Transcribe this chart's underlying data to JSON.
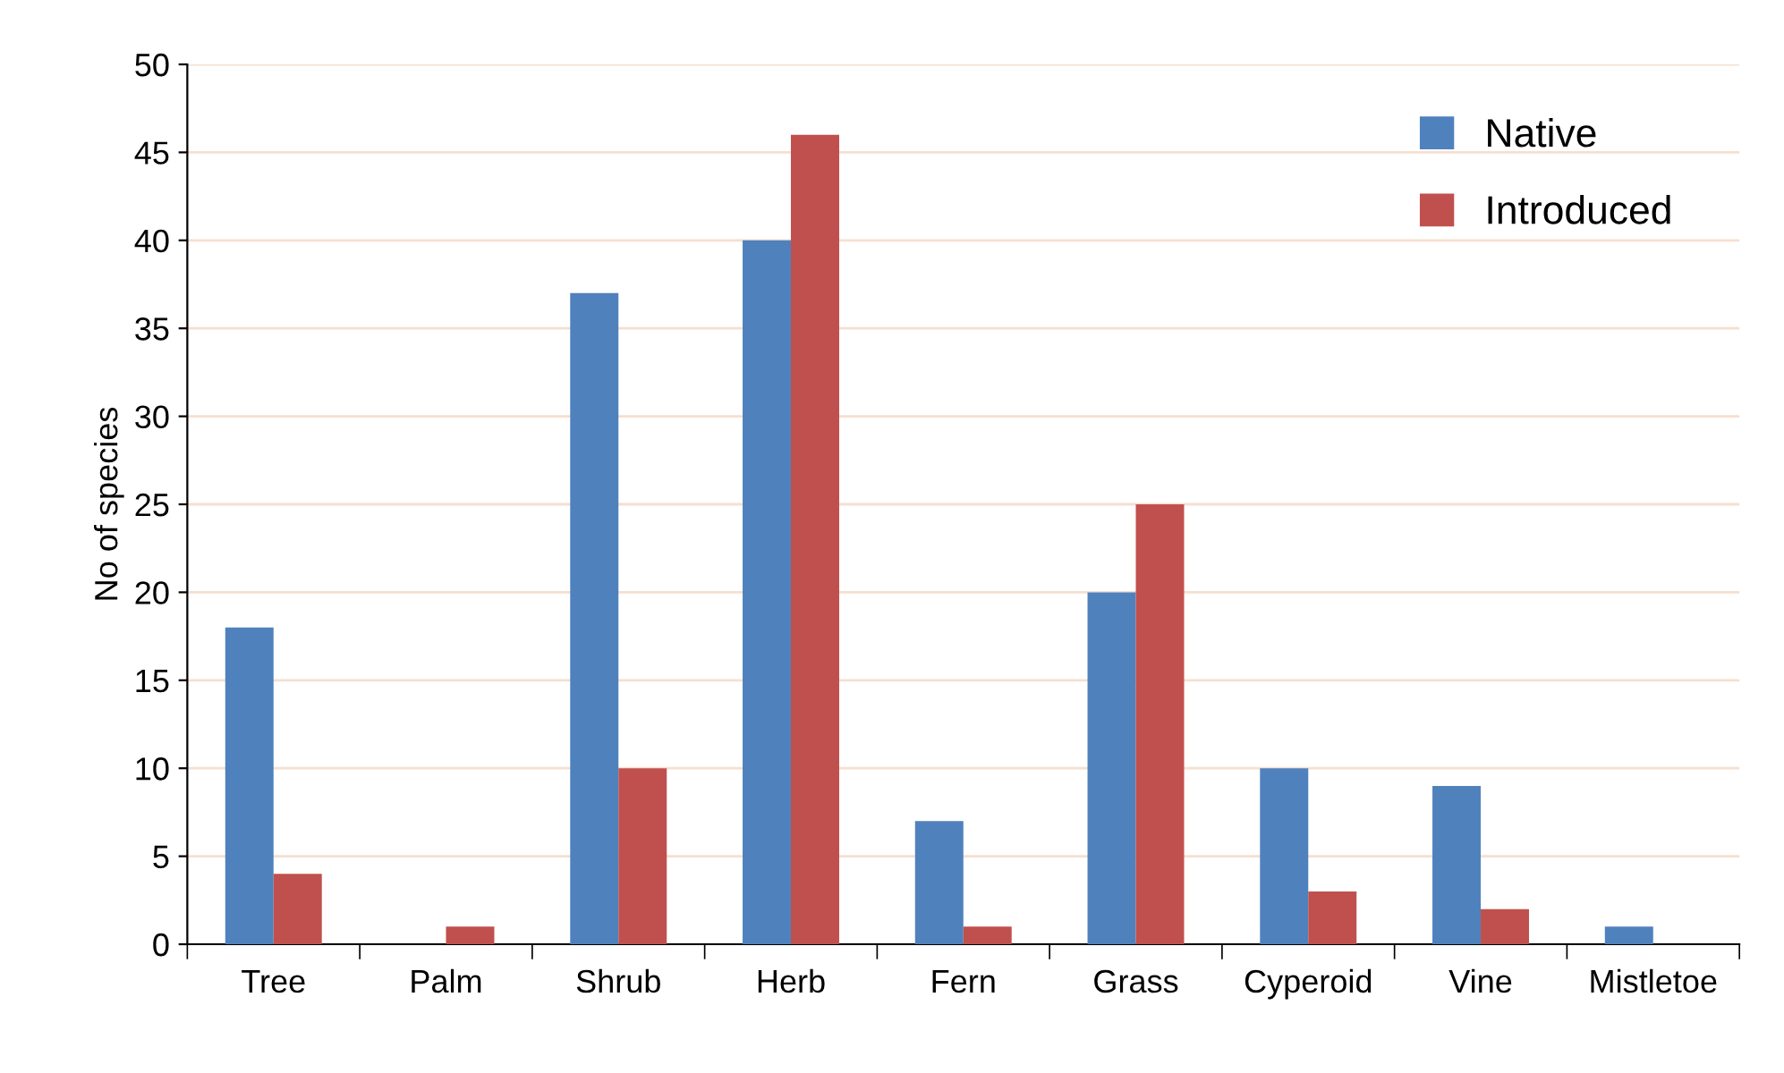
{
  "chart_data": {
    "type": "bar",
    "ylabel": "No of species",
    "categories": [
      "Tree",
      "Palm",
      "Shrub",
      "Herb",
      "Fern",
      "Grass",
      "Cyperoid",
      "Vine",
      "Mistletoe"
    ],
    "series": [
      {
        "name": "Native",
        "color": "#4f81bd",
        "values": [
          18,
          0,
          37,
          40,
          7,
          20,
          10,
          9,
          1
        ]
      },
      {
        "name": "Introduced",
        "color": "#c0504d",
        "values": [
          4,
          1,
          10,
          46,
          1,
          25,
          3,
          2,
          0
        ]
      }
    ],
    "ylim": [
      0,
      50
    ],
    "yticks": [
      0,
      5,
      10,
      15,
      20,
      25,
      30,
      35,
      40,
      45,
      50
    ],
    "grid": "y",
    "legend": "top right"
  }
}
